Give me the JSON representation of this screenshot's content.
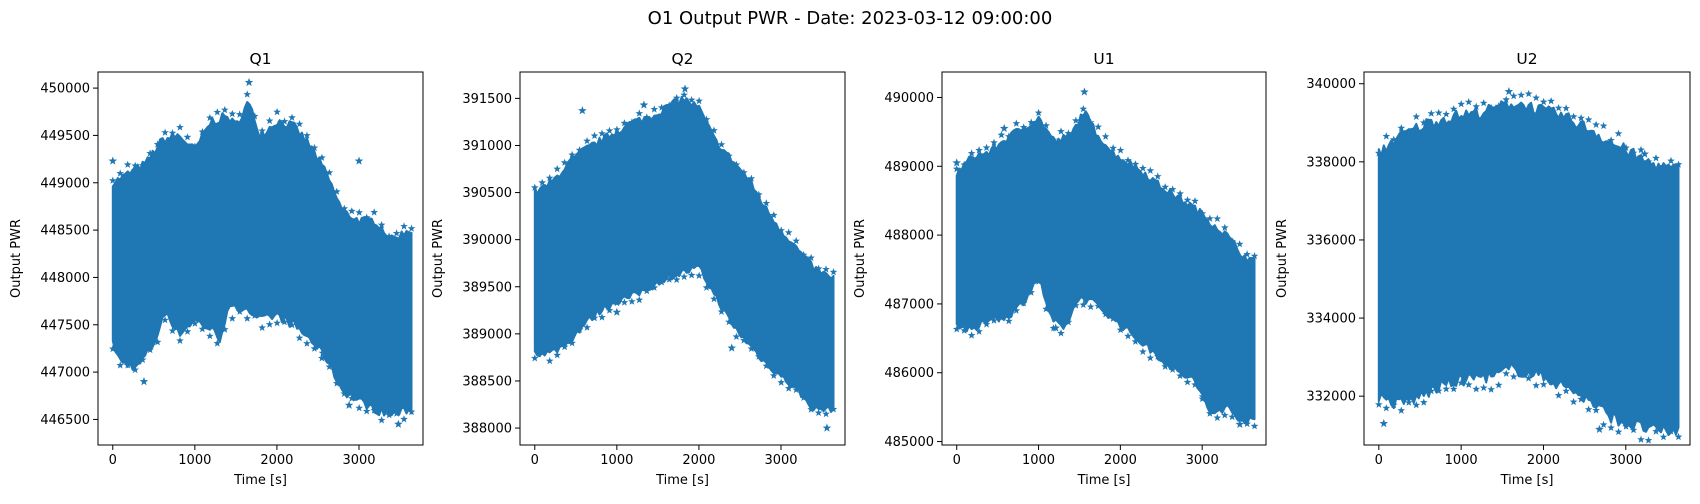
{
  "figure_title": "O1 Output PWR - Date: 2023-03-12 09:00:00",
  "accent_color": "#1f77b4",
  "chart_data": [
    {
      "type": "scatter",
      "title": "Q1",
      "xlabel": "Time [s]",
      "ylabel": "Output PWR",
      "xlim": [
        -180,
        3780
      ],
      "ylim": [
        446230,
        450170
      ],
      "xticks": [
        0,
        1000,
        2000,
        3000
      ],
      "yticks": [
        446500,
        447000,
        447500,
        448000,
        448500,
        449000,
        449500,
        450000
      ],
      "marker": "star",
      "color": "#1f77b4",
      "upper": [
        [
          0,
          449000
        ],
        [
          200,
          449100
        ],
        [
          400,
          449200
        ],
        [
          600,
          449450
        ],
        [
          800,
          449500
        ],
        [
          1000,
          449350
        ],
        [
          1200,
          449650
        ],
        [
          1400,
          449700
        ],
        [
          1500,
          449600
        ],
        [
          1650,
          449850
        ],
        [
          1800,
          449500
        ],
        [
          2000,
          449650
        ],
        [
          2200,
          449600
        ],
        [
          2400,
          449400
        ],
        [
          2600,
          449100
        ],
        [
          2800,
          448700
        ],
        [
          3000,
          448600
        ],
        [
          3200,
          448600
        ],
        [
          3400,
          448400
        ],
        [
          3600,
          448500
        ]
      ],
      "lower": [
        [
          0,
          447300
        ],
        [
          100,
          447100
        ],
        [
          300,
          447050
        ],
        [
          500,
          447300
        ],
        [
          650,
          447650
        ],
        [
          800,
          447400
        ],
        [
          1000,
          447550
        ],
        [
          1200,
          447450
        ],
        [
          1300,
          447350
        ],
        [
          1400,
          447650
        ],
        [
          1600,
          447700
        ],
        [
          1800,
          447550
        ],
        [
          2000,
          447600
        ],
        [
          2200,
          447500
        ],
        [
          2400,
          447350
        ],
        [
          2600,
          447150
        ],
        [
          2800,
          446800
        ],
        [
          3000,
          446700
        ],
        [
          3200,
          446600
        ],
        [
          3400,
          446550
        ],
        [
          3600,
          446600
        ]
      ],
      "outliers": [
        [
          1660,
          450060
        ],
        [
          3000,
          449230
        ],
        [
          0,
          449230
        ],
        [
          380,
          446900
        ],
        [
          2560,
          447200
        ],
        [
          2880,
          446650
        ],
        [
          3480,
          446450
        ]
      ]
    },
    {
      "type": "scatter",
      "title": "Q2",
      "xlabel": "Time [s]",
      "ylabel": "Output PWR",
      "xlim": [
        -180,
        3780
      ],
      "ylim": [
        387820,
        391780
      ],
      "xticks": [
        0,
        1000,
        2000,
        3000
      ],
      "yticks": [
        388000,
        388500,
        389000,
        389500,
        390000,
        390500,
        391000,
        391500
      ],
      "marker": "star",
      "color": "#1f77b4",
      "upper": [
        [
          0,
          390500
        ],
        [
          200,
          390600
        ],
        [
          400,
          390800
        ],
        [
          600,
          390950
        ],
        [
          800,
          391050
        ],
        [
          1000,
          391150
        ],
        [
          1200,
          391250
        ],
        [
          1400,
          391300
        ],
        [
          1600,
          391400
        ],
        [
          1800,
          391500
        ],
        [
          2000,
          391400
        ],
        [
          2200,
          391050
        ],
        [
          2400,
          390850
        ],
        [
          2600,
          390650
        ],
        [
          2800,
          390350
        ],
        [
          3000,
          390100
        ],
        [
          3200,
          389900
        ],
        [
          3400,
          389700
        ],
        [
          3600,
          389600
        ]
      ],
      "lower": [
        [
          0,
          388800
        ],
        [
          200,
          388800
        ],
        [
          400,
          388900
        ],
        [
          600,
          389100
        ],
        [
          800,
          389250
        ],
        [
          1000,
          389350
        ],
        [
          1200,
          389400
        ],
        [
          1400,
          389500
        ],
        [
          1600,
          389600
        ],
        [
          1800,
          389650
        ],
        [
          2000,
          389700
        ],
        [
          2200,
          389400
        ],
        [
          2400,
          389100
        ],
        [
          2600,
          388900
        ],
        [
          2800,
          388700
        ],
        [
          3000,
          388550
        ],
        [
          3200,
          388400
        ],
        [
          3400,
          388200
        ],
        [
          3600,
          388200
        ]
      ],
      "outliers": [
        [
          1830,
          391600
        ],
        [
          3560,
          388000
        ],
        [
          1000,
          389230
        ],
        [
          2400,
          388850
        ],
        [
          580,
          391370
        ],
        [
          1330,
          391430
        ]
      ]
    },
    {
      "type": "scatter",
      "title": "U1",
      "xlabel": "Time [s]",
      "ylabel": "Output PWR",
      "xlim": [
        -180,
        3780
      ],
      "ylim": [
        484950,
        490370
      ],
      "xticks": [
        0,
        1000,
        2000,
        3000
      ],
      "yticks": [
        485000,
        486000,
        487000,
        488000,
        489000,
        490000
      ],
      "marker": "star",
      "color": "#1f77b4",
      "upper": [
        [
          0,
          488900
        ],
        [
          200,
          489150
        ],
        [
          400,
          489200
        ],
        [
          600,
          489400
        ],
        [
          800,
          489550
        ],
        [
          1000,
          489700
        ],
        [
          1200,
          489350
        ],
        [
          1400,
          489450
        ],
        [
          1550,
          489800
        ],
        [
          1700,
          489500
        ],
        [
          1900,
          489200
        ],
        [
          2100,
          489050
        ],
        [
          2300,
          488900
        ],
        [
          2500,
          488700
        ],
        [
          2700,
          488550
        ],
        [
          2900,
          488400
        ],
        [
          3100,
          488200
        ],
        [
          3300,
          488000
        ],
        [
          3500,
          487700
        ],
        [
          3650,
          487600
        ]
      ],
      "lower": [
        [
          0,
          486700
        ],
        [
          200,
          486600
        ],
        [
          400,
          486800
        ],
        [
          600,
          486800
        ],
        [
          800,
          487000
        ],
        [
          1000,
          487400
        ],
        [
          1150,
          486800
        ],
        [
          1300,
          486600
        ],
        [
          1500,
          487100
        ],
        [
          1700,
          487000
        ],
        [
          1900,
          486800
        ],
        [
          2100,
          486600
        ],
        [
          2300,
          486400
        ],
        [
          2500,
          486200
        ],
        [
          2700,
          486000
        ],
        [
          2900,
          485900
        ],
        [
          3100,
          485400
        ],
        [
          3300,
          485500
        ],
        [
          3500,
          485300
        ],
        [
          3650,
          485300
        ]
      ],
      "outliers": [
        [
          1560,
          490080
        ],
        [
          3010,
          485650
        ],
        [
          1210,
          486650
        ],
        [
          3460,
          485250
        ],
        [
          0,
          489050
        ],
        [
          580,
          489550
        ]
      ]
    },
    {
      "type": "scatter",
      "title": "U2",
      "xlabel": "Time [s]",
      "ylabel": "Output PWR",
      "xlim": [
        -180,
        3780
      ],
      "ylim": [
        330750,
        340300
      ],
      "xticks": [
        0,
        1000,
        2000,
        3000
      ],
      "yticks": [
        332000,
        334000,
        336000,
        338000,
        340000
      ],
      "marker": "star",
      "color": "#1f77b4",
      "upper": [
        [
          0,
          338200
        ],
        [
          200,
          338600
        ],
        [
          400,
          338800
        ],
        [
          600,
          339000
        ],
        [
          800,
          339100
        ],
        [
          1000,
          339200
        ],
        [
          1200,
          339250
        ],
        [
          1400,
          339350
        ],
        [
          1600,
          339500
        ],
        [
          1800,
          339450
        ],
        [
          2000,
          339300
        ],
        [
          2200,
          339200
        ],
        [
          2400,
          339000
        ],
        [
          2600,
          338800
        ],
        [
          2800,
          338500
        ],
        [
          3000,
          338300
        ],
        [
          3200,
          338050
        ],
        [
          3400,
          337900
        ],
        [
          3600,
          337800
        ]
      ],
      "lower": [
        [
          0,
          332000
        ],
        [
          200,
          331800
        ],
        [
          400,
          331900
        ],
        [
          600,
          332100
        ],
        [
          800,
          332300
        ],
        [
          1000,
          332400
        ],
        [
          1200,
          332500
        ],
        [
          1400,
          332500
        ],
        [
          1600,
          332700
        ],
        [
          1800,
          332600
        ],
        [
          2000,
          332500
        ],
        [
          2200,
          332300
        ],
        [
          2400,
          332100
        ],
        [
          2600,
          331800
        ],
        [
          2800,
          331500
        ],
        [
          3000,
          331300
        ],
        [
          3200,
          331200
        ],
        [
          3400,
          331100
        ],
        [
          3600,
          331100
        ]
      ],
      "outliers": [
        [
          1580,
          339800
        ],
        [
          60,
          331300
        ],
        [
          3230,
          338200
        ],
        [
          2680,
          331150
        ]
      ]
    }
  ]
}
